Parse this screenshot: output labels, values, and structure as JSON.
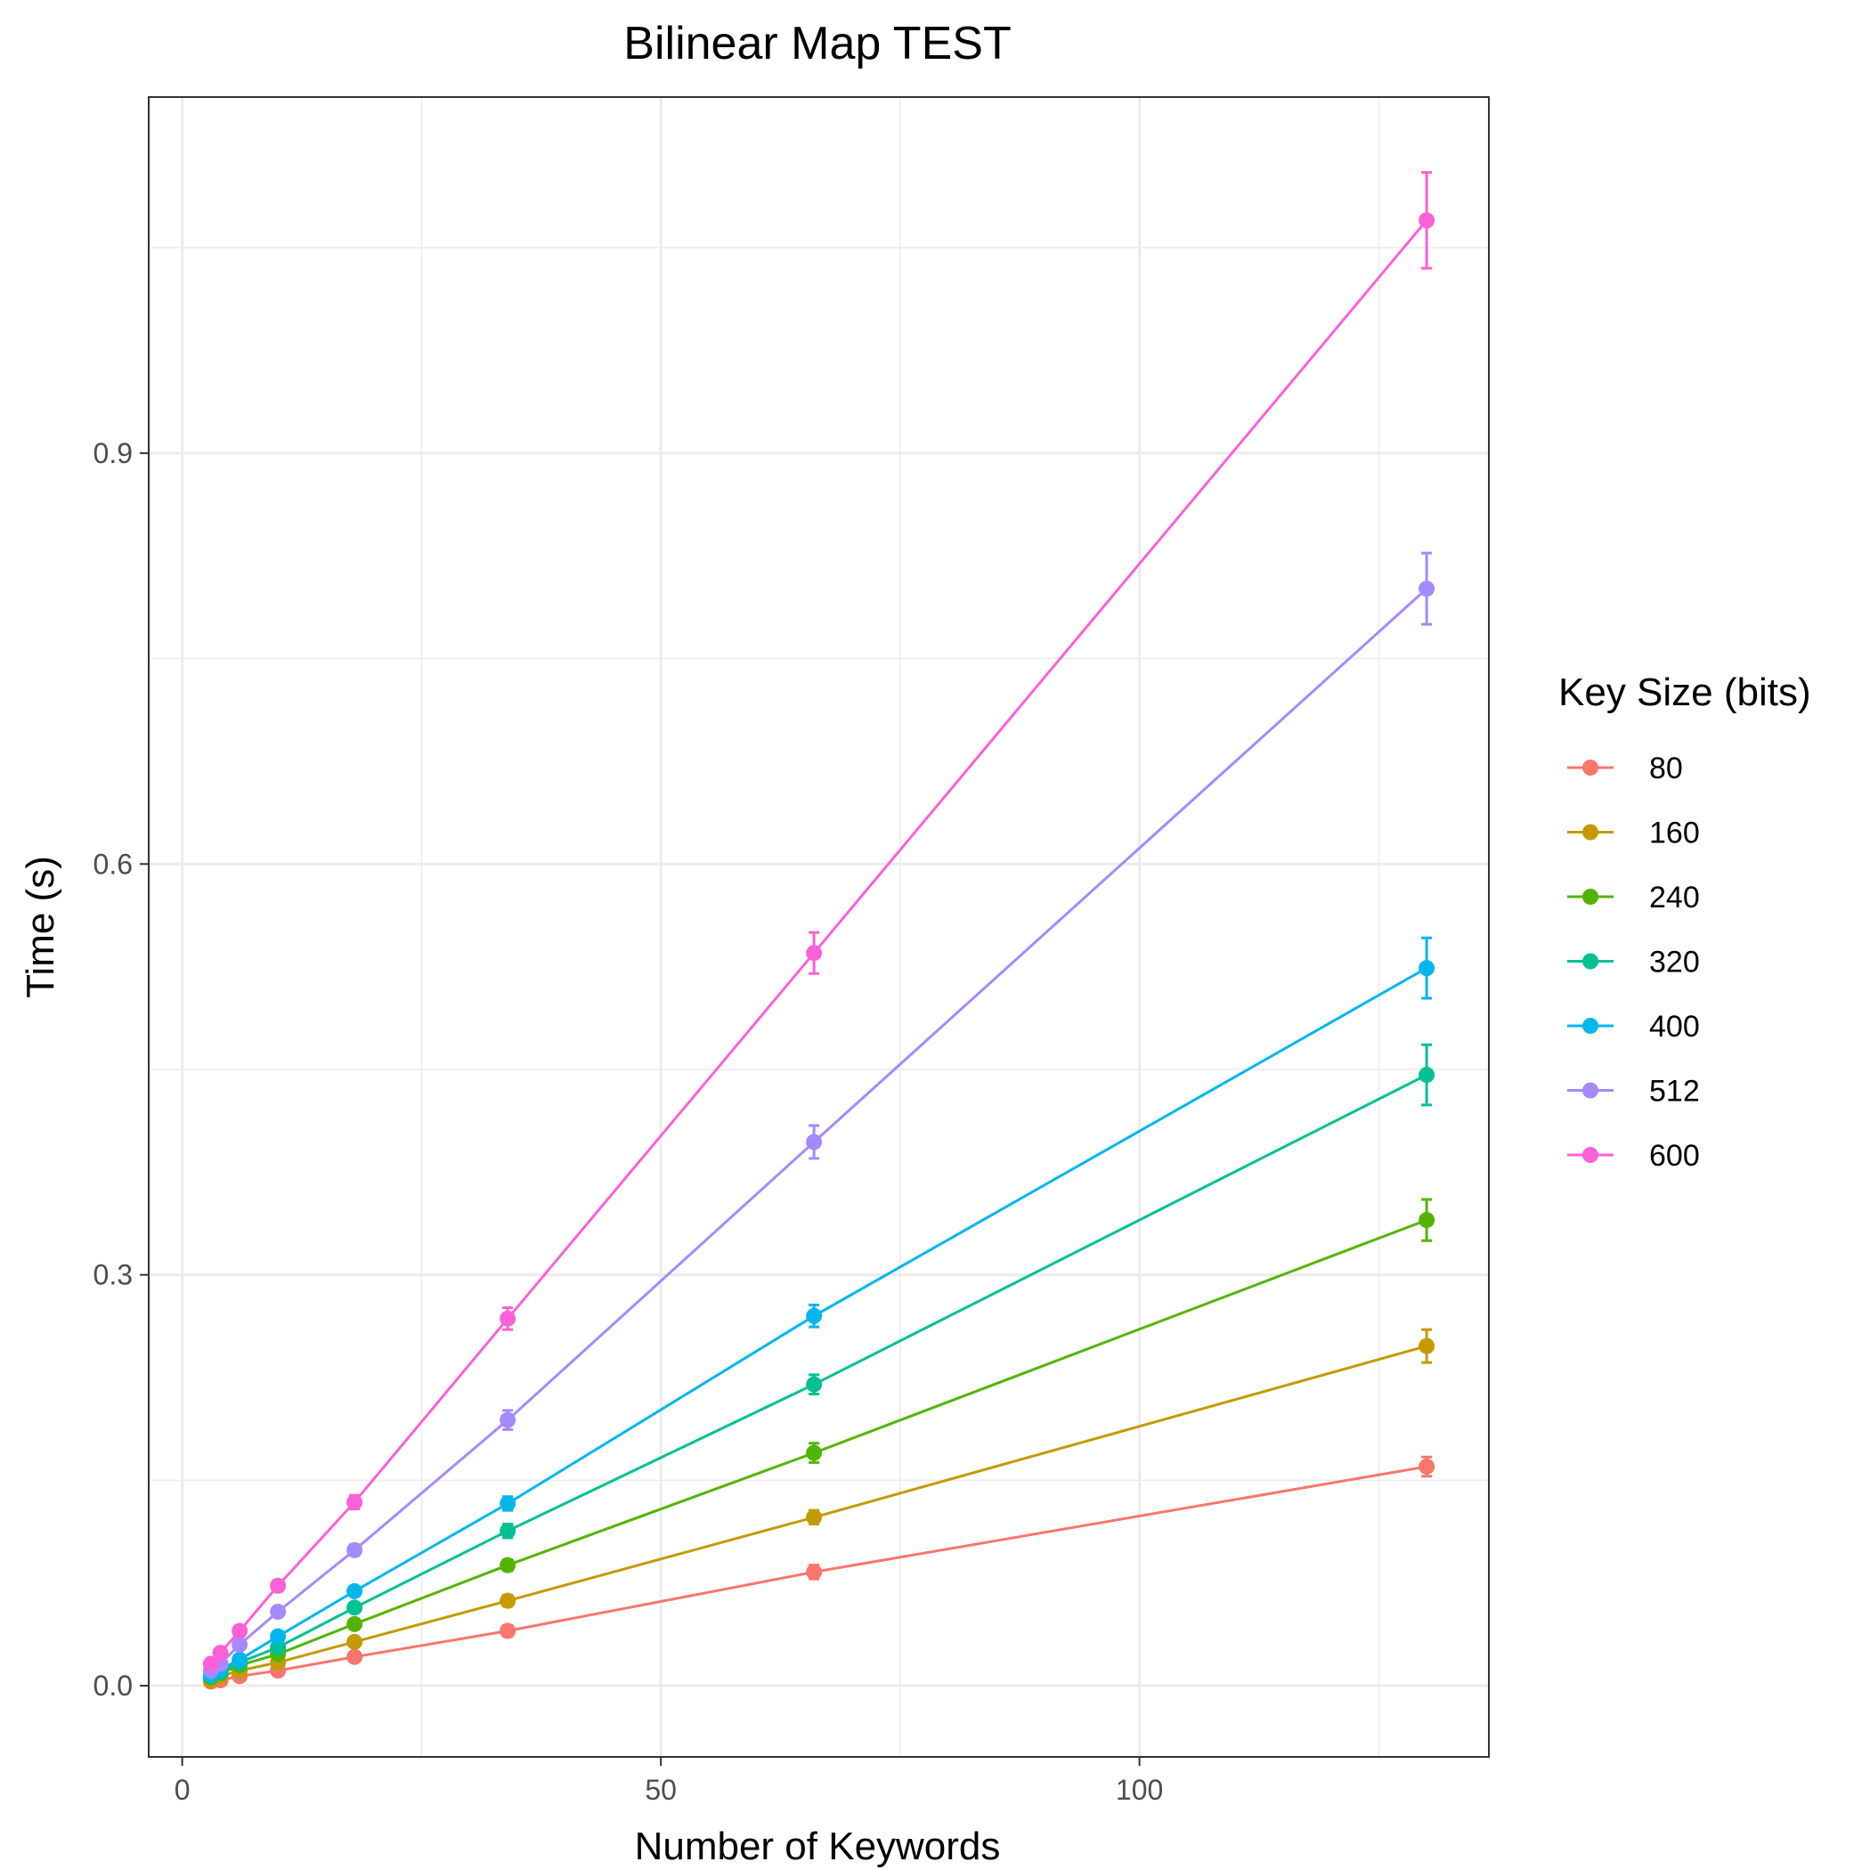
{
  "chart_data": {
    "type": "line",
    "title": "Bilinear Map TEST",
    "xlabel": "Number of Keywords",
    "ylabel": "Time (s)",
    "xlim": [
      -3.5,
      136.5
    ],
    "ylim": [
      -0.052,
      1.16
    ],
    "x_ticks": [
      0,
      50,
      100
    ],
    "y_ticks": [
      0.0,
      0.3,
      0.6,
      0.9
    ],
    "x_tick_labels": [
      "0",
      "50",
      "100"
    ],
    "y_tick_labels": [
      "0.0",
      "0.3",
      "0.6",
      "0.9"
    ],
    "grid": true,
    "legend": {
      "title": "Key Size (bits)",
      "position": "right"
    },
    "x": [
      3,
      4,
      6,
      10,
      18,
      34,
      66,
      130
    ],
    "series": [
      {
        "name": "80",
        "color": "#F8766D",
        "values": [
          0.003,
          0.004,
          0.007,
          0.011,
          0.021,
          0.04,
          0.083,
          0.16
        ],
        "errors": [
          0.001,
          0.001,
          0.001,
          0.002,
          0.003,
          0.004,
          0.005,
          0.007
        ]
      },
      {
        "name": "160",
        "color": "#C49A00",
        "values": [
          0.004,
          0.007,
          0.011,
          0.017,
          0.032,
          0.062,
          0.123,
          0.248
        ],
        "errors": [
          0.001,
          0.001,
          0.001,
          0.002,
          0.003,
          0.004,
          0.005,
          0.012
        ]
      },
      {
        "name": "240",
        "color": "#53B400",
        "values": [
          0.006,
          0.009,
          0.015,
          0.023,
          0.045,
          0.088,
          0.17,
          0.34
        ],
        "errors": [
          0.001,
          0.001,
          0.002,
          0.002,
          0.003,
          0.004,
          0.007,
          0.015
        ]
      },
      {
        "name": "320",
        "color": "#00C094",
        "values": [
          0.007,
          0.01,
          0.017,
          0.028,
          0.057,
          0.113,
          0.22,
          0.446
        ],
        "errors": [
          0.001,
          0.001,
          0.002,
          0.003,
          0.003,
          0.005,
          0.007,
          0.022
        ]
      },
      {
        "name": "400",
        "color": "#00B6EB",
        "values": [
          0.008,
          0.012,
          0.019,
          0.036,
          0.069,
          0.133,
          0.27,
          0.524
        ],
        "errors": [
          0.001,
          0.001,
          0.002,
          0.003,
          0.003,
          0.005,
          0.008,
          0.022
        ]
      },
      {
        "name": "512",
        "color": "#A58AFF",
        "values": [
          0.011,
          0.016,
          0.03,
          0.054,
          0.099,
          0.194,
          0.397,
          0.801
        ],
        "errors": [
          0.001,
          0.001,
          0.002,
          0.003,
          0.004,
          0.007,
          0.012,
          0.026
        ]
      },
      {
        "name": "600",
        "color": "#FB61D7",
        "values": [
          0.016,
          0.024,
          0.04,
          0.073,
          0.134,
          0.268,
          0.535,
          1.07
        ],
        "errors": [
          0.001,
          0.002,
          0.003,
          0.004,
          0.005,
          0.008,
          0.015,
          0.035
        ]
      }
    ]
  }
}
